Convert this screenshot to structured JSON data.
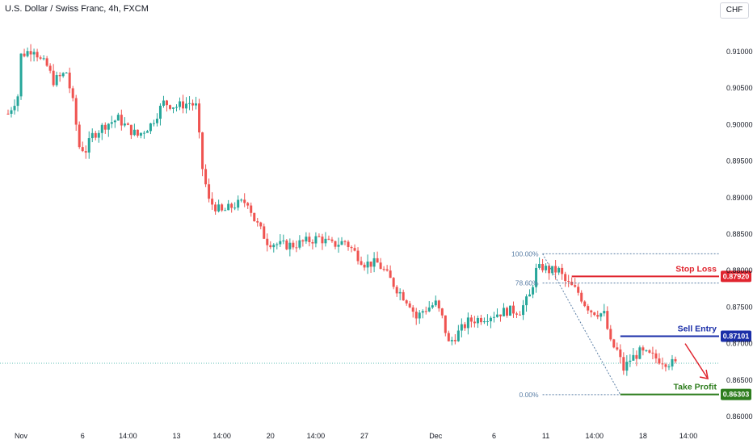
{
  "header": {
    "title": "U.S. Dollar / Swiss Franc, 4h, FXCM",
    "currency": "CHF"
  },
  "colors": {
    "up": "#26a69a",
    "down": "#ef5350",
    "stop_loss": "#e0242e",
    "sell_entry": "#1a2ea8",
    "take_profit": "#2e7d1e",
    "fib": "#5b7fa6",
    "arrow": "#e0242e"
  },
  "chart_data": {
    "type": "candlestick",
    "ylim": [
      0.8585,
      0.914
    ],
    "y_ticks": [
      "0.91000",
      "0.90500",
      "0.90000",
      "0.89500",
      "0.89000",
      "0.88500",
      "0.88000",
      "0.87500",
      "0.87000",
      "0.86500",
      "0.86000"
    ],
    "y_tick_values": [
      0.91,
      0.905,
      0.9,
      0.895,
      0.89,
      0.885,
      0.88,
      0.875,
      0.87,
      0.865,
      0.86
    ],
    "x_ticks": [
      "Nov",
      "6",
      "14:00",
      "13",
      "14:00",
      "20",
      "14:00",
      "27",
      "Dec",
      "6",
      "11",
      "14:00",
      "18",
      "14:00"
    ],
    "x_tick_index": [
      4,
      23,
      37,
      52,
      66,
      81,
      95,
      110,
      132,
      150,
      166,
      181,
      196,
      210
    ],
    "candle_count": 215,
    "close_path": [
      [
        0,
        0.9015
      ],
      [
        3,
        0.904
      ],
      [
        4,
        0.9095
      ],
      [
        8,
        0.9105
      ],
      [
        10,
        0.9088
      ],
      [
        12,
        0.908
      ],
      [
        14,
        0.906
      ],
      [
        16,
        0.9065
      ],
      [
        18,
        0.9072
      ],
      [
        20,
        0.903
      ],
      [
        22,
        0.897
      ],
      [
        24,
        0.8965
      ],
      [
        26,
        0.8985
      ],
      [
        30,
        0.9
      ],
      [
        34,
        0.9008
      ],
      [
        37,
        0.8995
      ],
      [
        40,
        0.8985
      ],
      [
        44,
        0.9
      ],
      [
        48,
        0.903
      ],
      [
        52,
        0.9025
      ],
      [
        56,
        0.903
      ],
      [
        58,
        0.9025
      ],
      [
        60,
        0.894
      ],
      [
        62,
        0.8895
      ],
      [
        66,
        0.888
      ],
      [
        70,
        0.889
      ],
      [
        74,
        0.8895
      ],
      [
        76,
        0.887
      ],
      [
        80,
        0.884
      ],
      [
        84,
        0.8835
      ],
      [
        88,
        0.8835
      ],
      [
        92,
        0.884
      ],
      [
        96,
        0.8845
      ],
      [
        100,
        0.8835
      ],
      [
        104,
        0.884
      ],
      [
        106,
        0.883
      ],
      [
        110,
        0.881
      ],
      [
        114,
        0.881
      ],
      [
        116,
        0.88
      ],
      [
        120,
        0.8775
      ],
      [
        124,
        0.8755
      ],
      [
        126,
        0.8735
      ],
      [
        128,
        0.8745
      ],
      [
        130,
        0.875
      ],
      [
        132,
        0.8755
      ],
      [
        134,
        0.8735
      ],
      [
        136,
        0.87
      ],
      [
        138,
        0.871
      ],
      [
        140,
        0.872
      ],
      [
        142,
        0.873
      ],
      [
        146,
        0.8735
      ],
      [
        150,
        0.874
      ],
      [
        154,
        0.8745
      ],
      [
        158,
        0.8745
      ],
      [
        161,
        0.8765
      ],
      [
        163,
        0.88
      ],
      [
        165,
        0.8805
      ],
      [
        167,
        0.88
      ],
      [
        170,
        0.88
      ],
      [
        172,
        0.8785
      ],
      [
        176,
        0.877
      ],
      [
        178,
        0.8755
      ],
      [
        180,
        0.8745
      ],
      [
        184,
        0.874
      ],
      [
        186,
        0.87
      ],
      [
        188,
        0.869
      ],
      [
        190,
        0.8665
      ],
      [
        192,
        0.8678
      ],
      [
        195,
        0.8688
      ],
      [
        197,
        0.8685
      ],
      [
        200,
        0.868
      ],
      [
        203,
        0.8675
      ],
      [
        206,
        0.8672
      ]
    ],
    "fibonacci": {
      "levels": [
        {
          "label": "100.00%",
          "price": 0.8823
        },
        {
          "label": "78.60%",
          "price": 0.8783
        },
        {
          "label": "0.00%",
          "price": 0.863
        }
      ]
    },
    "stop_loss": {
      "label": "Stop Loss",
      "price": 0.8792,
      "price_label": "0.87920"
    },
    "sell_entry": {
      "label": "Sell Entry",
      "price": 0.87101,
      "price_label": "0.87101"
    },
    "take_profit": {
      "label": "Take Profit",
      "price": 0.86303,
      "price_label": "0.86303"
    },
    "current_price": 0.8673
  }
}
